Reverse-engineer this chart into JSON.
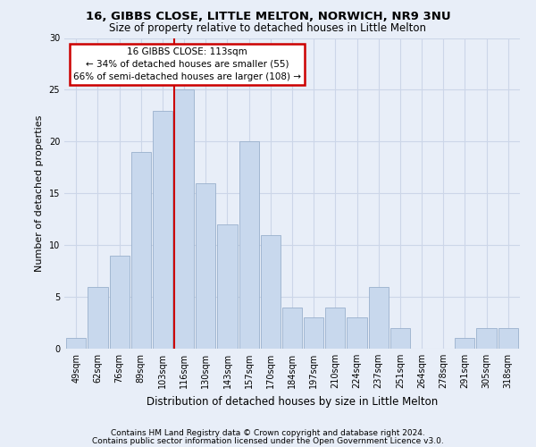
{
  "title1": "16, GIBBS CLOSE, LITTLE MELTON, NORWICH, NR9 3NU",
  "title2": "Size of property relative to detached houses in Little Melton",
  "xlabel": "Distribution of detached houses by size in Little Melton",
  "ylabel": "Number of detached properties",
  "footer1": "Contains HM Land Registry data © Crown copyright and database right 2024.",
  "footer2": "Contains public sector information licensed under the Open Government Licence v3.0.",
  "annotation_title": "16 GIBBS CLOSE: 113sqm",
  "annotation_line1": "← 34% of detached houses are smaller (55)",
  "annotation_line2": "66% of semi-detached houses are larger (108) →",
  "bar_labels": [
    "49sqm",
    "62sqm",
    "76sqm",
    "89sqm",
    "103sqm",
    "116sqm",
    "130sqm",
    "143sqm",
    "157sqm",
    "170sqm",
    "184sqm",
    "197sqm",
    "210sqm",
    "224sqm",
    "237sqm",
    "251sqm",
    "264sqm",
    "278sqm",
    "291sqm",
    "305sqm",
    "318sqm"
  ],
  "bar_values": [
    1,
    6,
    9,
    19,
    23,
    25,
    16,
    12,
    20,
    11,
    4,
    3,
    4,
    3,
    6,
    2,
    0,
    0,
    1,
    2,
    2
  ],
  "n_bins": 21,
  "bar_color": "#c8d8ed",
  "bar_edge_color": "#9ab0cc",
  "vline_color": "#cc0000",
  "vline_bin": 4,
  "grid_color": "#ccd6e8",
  "background_color": "#e8eef8",
  "plot_bg_color": "#e8eef8",
  "box_edge_color": "#cc0000",
  "ylim": [
    0,
    30
  ],
  "yticks": [
    0,
    5,
    10,
    15,
    20,
    25,
    30
  ],
  "title1_fontsize": 9.5,
  "title2_fontsize": 8.5,
  "tick_fontsize": 7,
  "ylabel_fontsize": 8,
  "xlabel_fontsize": 8.5,
  "ann_fontsize": 7.5,
  "footer_fontsize": 6.5
}
